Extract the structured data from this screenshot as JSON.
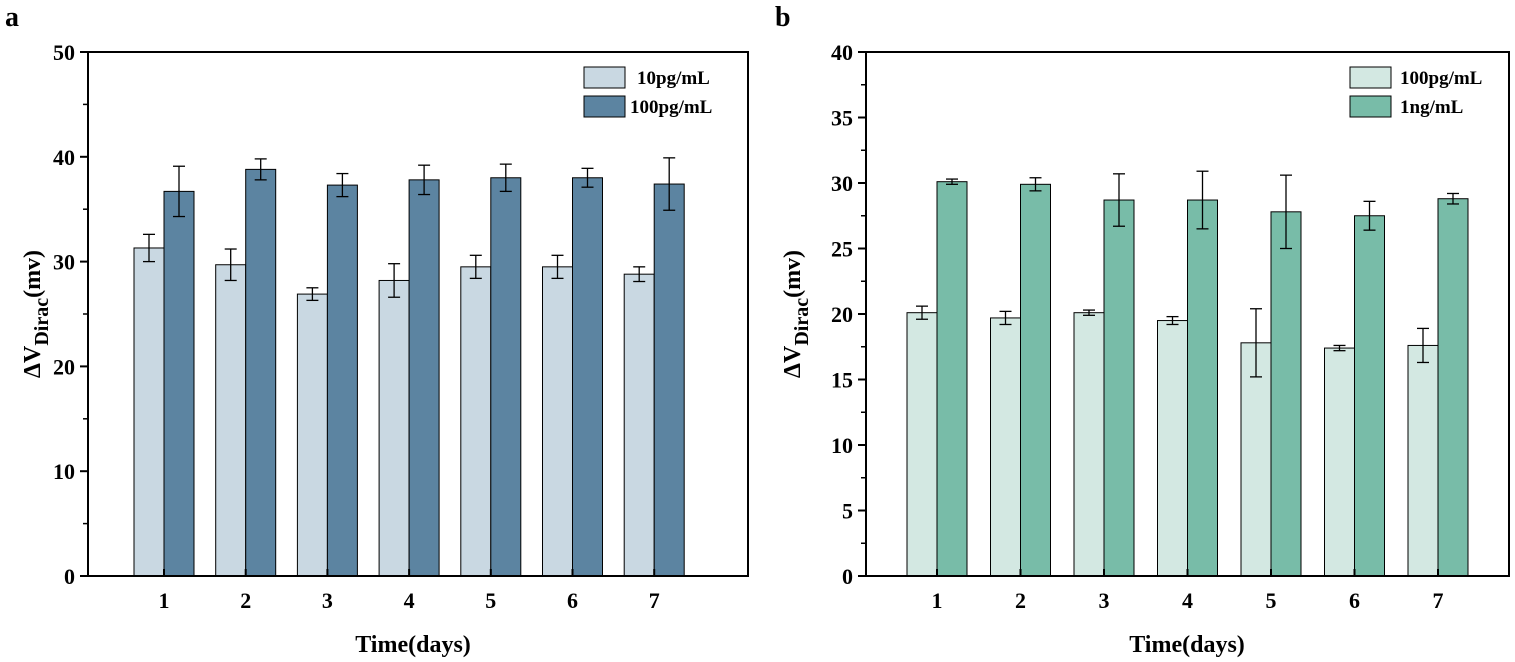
{
  "chart_data": [
    {
      "panel": "a",
      "type": "bar",
      "xlabel": "Time(days)",
      "ylabel": "ΔV",
      "ylabel_sub": "Dirac",
      "ylabel_unit": "(mv)",
      "categories": [
        "1",
        "2",
        "3",
        "4",
        "5",
        "6",
        "7"
      ],
      "ylim": [
        0,
        50
      ],
      "yticks": [
        "0",
        "10",
        "20",
        "30",
        "40",
        "50"
      ],
      "legend_position": "top-right",
      "series": [
        {
          "name": "10pg/mL",
          "color": "#c9d8e2",
          "values": [
            31.3,
            29.7,
            26.9,
            28.2,
            29.5,
            29.5,
            28.8
          ],
          "errors": [
            1.3,
            1.5,
            0.6,
            1.6,
            1.1,
            1.1,
            0.7
          ]
        },
        {
          "name": "100pg/mL",
          "color": "#5c84a1",
          "values": [
            36.7,
            38.8,
            37.3,
            37.8,
            38.0,
            38.0,
            37.4
          ],
          "errors": [
            2.4,
            1.0,
            1.1,
            1.4,
            1.3,
            0.9,
            2.5
          ]
        }
      ]
    },
    {
      "panel": "b",
      "type": "bar",
      "xlabel": "Time(days)",
      "ylabel": "ΔV",
      "ylabel_sub": "Dirac",
      "ylabel_unit": "(mv)",
      "categories": [
        "1",
        "2",
        "3",
        "4",
        "5",
        "6",
        "7"
      ],
      "ylim": [
        0,
        40
      ],
      "yticks": [
        "0",
        "5",
        "10",
        "15",
        "20",
        "25",
        "30",
        "35",
        "40"
      ],
      "legend_position": "top-right",
      "series": [
        {
          "name": "100pg/mL",
          "color": "#d3e8e2",
          "values": [
            20.1,
            19.7,
            20.1,
            19.5,
            17.8,
            17.4,
            17.6
          ],
          "errors": [
            0.5,
            0.5,
            0.2,
            0.3,
            2.6,
            0.2,
            1.3
          ]
        },
        {
          "name": "1ng/mL",
          "color": "#78bca8",
          "values": [
            30.1,
            29.9,
            28.7,
            28.7,
            27.8,
            27.5,
            28.8
          ],
          "errors": [
            0.2,
            0.5,
            2.0,
            2.2,
            2.8,
            1.1,
            0.4
          ]
        }
      ]
    }
  ]
}
